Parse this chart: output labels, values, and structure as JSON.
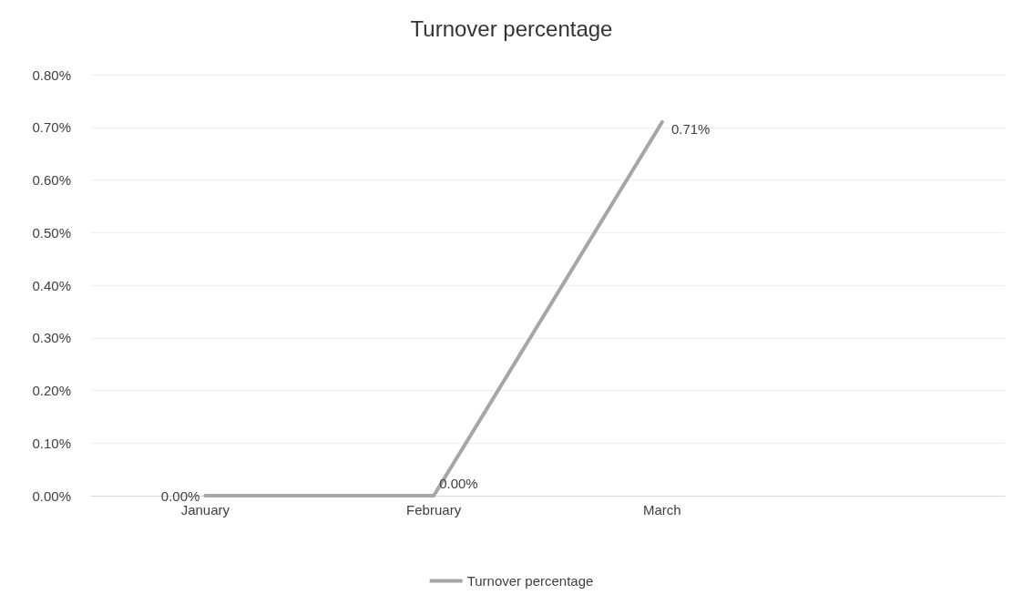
{
  "chart_data": {
    "type": "line",
    "title": "Turnover percentage",
    "categories": [
      "January",
      "February",
      "March",
      null
    ],
    "series": [
      {
        "name": "Turnover percentage",
        "color": "#a6a6a6",
        "values": [
          0,
          0,
          0.71,
          null
        ],
        "value_labels": [
          "0.00%",
          "0.00%",
          "0.71%",
          null
        ]
      }
    ],
    "ylim": [
      0,
      0.8
    ],
    "yticks": [
      {
        "value": 0,
        "label": "0.00%"
      },
      {
        "value": 0.1,
        "label": "0.10%"
      },
      {
        "value": 0.2,
        "label": "0.20%"
      },
      {
        "value": 0.3,
        "label": "0.30%"
      },
      {
        "value": 0.4,
        "label": "0.40%"
      },
      {
        "value": 0.5,
        "label": "0.50%"
      },
      {
        "value": 0.6,
        "label": "0.60%"
      },
      {
        "value": 0.7,
        "label": "0.70%"
      },
      {
        "value": 0.8,
        "label": "0.80%"
      }
    ],
    "grid": "y",
    "legend": "bottom",
    "marker": "none",
    "line_style": "solid"
  }
}
